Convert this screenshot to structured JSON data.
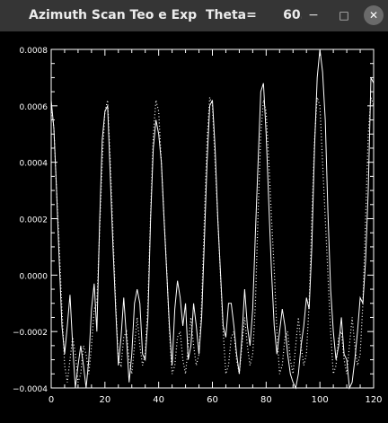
{
  "window": {
    "title": "Azimuth Scan Teo e Exp  Theta=      60.0000",
    "minimize_glyph": "−",
    "maximize_glyph": "□",
    "close_glyph": "✕"
  },
  "colors": {
    "background": "#000000",
    "titlebar": "#353535",
    "foreground": "#ffffff"
  },
  "chart_data": {
    "type": "line",
    "title": "",
    "xlabel": "",
    "ylabel": "",
    "xlim": [
      0,
      120
    ],
    "ylim": [
      -0.0004,
      0.0008
    ],
    "xticks": [
      0,
      20,
      40,
      60,
      80,
      100,
      120
    ],
    "xtick_labels": [
      "0",
      "20",
      "40",
      "60",
      "80",
      "100",
      "120"
    ],
    "yticks": [
      -0.0004,
      -0.0002,
      0.0,
      0.0002,
      0.0004,
      0.0006,
      0.0008
    ],
    "ytick_labels": [
      "−0.0004",
      "−0.0002",
      "0.0000",
      "0.0002",
      "0.0004",
      "0.0006",
      "0.0008"
    ],
    "grid": false,
    "legend": "none",
    "series": [
      {
        "style": "solid",
        "x": [
          0,
          1,
          2,
          3,
          4,
          5,
          6,
          7,
          8,
          9,
          10,
          11,
          12,
          13,
          14,
          15,
          16,
          17,
          18,
          19,
          20,
          21,
          22,
          23,
          24,
          25,
          26,
          27,
          28,
          29,
          30,
          31,
          32,
          33,
          34,
          35,
          36,
          37,
          38,
          39,
          40,
          41,
          42,
          43,
          44,
          45,
          46,
          47,
          48,
          49,
          50,
          51,
          52,
          53,
          54,
          55,
          56,
          57,
          58,
          59,
          60,
          61,
          62,
          63,
          64,
          65,
          66,
          67,
          68,
          69,
          70,
          71,
          72,
          73,
          74,
          75,
          76,
          77,
          78,
          79,
          80,
          81,
          82,
          83,
          84,
          85,
          86,
          87,
          88,
          89,
          90,
          91,
          92,
          93,
          94,
          95,
          96,
          97,
          98,
          99,
          100,
          101,
          102,
          103,
          104,
          105,
          106,
          107,
          108,
          109,
          110,
          111,
          112,
          113,
          114,
          115,
          116,
          117,
          118,
          119,
          120
        ],
        "y": [
          0.00062,
          0.00052,
          0.0003,
          5e-05,
          -0.00018,
          -0.00028,
          -0.00018,
          -7e-05,
          -0.00025,
          -0.0004,
          -0.00032,
          -0.00025,
          -0.00032,
          -0.0004,
          -0.0003,
          -0.00012,
          -3e-05,
          -0.0002,
          0.00018,
          0.00048,
          0.00058,
          0.0006,
          0.00035,
          0.0001,
          -0.00012,
          -0.00032,
          -0.00022,
          -8e-05,
          -0.00022,
          -0.00038,
          -0.00028,
          -0.0001,
          -5e-05,
          -0.0001,
          -0.00028,
          -0.0003,
          -0.00015,
          0.0002,
          0.00045,
          0.00055,
          0.0005,
          0.0004,
          0.0002,
          1e-05,
          -0.00018,
          -0.00032,
          -0.00012,
          -2e-05,
          -8e-05,
          -0.00018,
          -0.0001,
          -0.0003,
          -0.00025,
          -0.0001,
          -0.00018,
          -0.00028,
          -0.00015,
          0.00012,
          0.0004,
          0.0006,
          0.00062,
          0.00045,
          0.0002,
          1e-05,
          -0.00018,
          -0.00022,
          -0.0001,
          -0.0001,
          -0.00018,
          -0.00028,
          -0.00035,
          -0.00022,
          -5e-05,
          -0.00018,
          -0.00025,
          -0.00012,
          0.00015,
          0.0004,
          0.00065,
          0.00068,
          0.0005,
          0.00025,
          1e-05,
          -0.00018,
          -0.00028,
          -0.0002,
          -0.00012,
          -0.00018,
          -0.00028,
          -0.00035,
          -0.00038,
          -0.0004,
          -0.00035,
          -0.00025,
          -0.00018,
          -8e-05,
          -0.00012,
          0.0001,
          0.00045,
          0.0007,
          0.0008,
          0.00072,
          0.00055,
          0.00022,
          -5e-05,
          -0.0002,
          -0.0003,
          -0.00025,
          -0.00015,
          -0.00028,
          -0.0003,
          -0.0004,
          -0.00038,
          -0.0003,
          -0.0002,
          -8e-05,
          -0.0001,
          5e-05,
          0.0003,
          0.0007,
          0.00068
        ]
      },
      {
        "style": "dotted",
        "x": [
          0,
          1,
          2,
          3,
          4,
          5,
          6,
          7,
          8,
          9,
          10,
          11,
          12,
          13,
          14,
          15,
          16,
          17,
          18,
          19,
          20,
          21,
          22,
          23,
          24,
          25,
          26,
          27,
          28,
          29,
          30,
          31,
          32,
          33,
          34,
          35,
          36,
          37,
          38,
          39,
          40,
          41,
          42,
          43,
          44,
          45,
          46,
          47,
          48,
          49,
          50,
          51,
          52,
          53,
          54,
          55,
          56,
          57,
          58,
          59,
          60,
          61,
          62,
          63,
          64,
          65,
          66,
          67,
          68,
          69,
          70,
          71,
          72,
          73,
          74,
          75,
          76,
          77,
          78,
          79,
          80,
          81,
          82,
          83,
          84,
          85,
          86,
          87,
          88,
          89,
          90,
          91,
          92,
          93,
          94,
          95,
          96,
          97,
          98,
          99,
          100,
          101,
          102,
          103,
          104,
          105,
          106,
          107,
          108,
          109,
          110,
          111,
          112,
          113,
          114,
          115,
          116,
          117,
          118,
          119,
          120
        ],
        "y": [
          0.0006,
          0.00052,
          0.0003,
          0.0001,
          -0.00012,
          -0.00032,
          -0.00038,
          -0.0003,
          -0.00022,
          -0.00028,
          -0.00038,
          -0.00035,
          -0.00025,
          -0.00028,
          -0.00035,
          -0.00025,
          -0.00012,
          -0.0001,
          0.00015,
          0.0004,
          0.00058,
          0.00062,
          0.0004,
          0.00015,
          -0.0001,
          -0.0003,
          -0.00032,
          -0.00022,
          -0.0002,
          -0.0003,
          -0.00035,
          -0.00025,
          -0.00015,
          -0.00025,
          -0.00032,
          -0.00028,
          -0.0001,
          0.00022,
          0.0005,
          0.00062,
          0.00058,
          0.0004,
          0.0002,
          2e-05,
          -0.0002,
          -0.00035,
          -0.00032,
          -0.00022,
          -0.0002,
          -0.0003,
          -0.00035,
          -0.00025,
          -0.00015,
          -0.00025,
          -0.00032,
          -0.00028,
          -0.0001,
          0.0002,
          0.00048,
          0.00063,
          0.0006,
          0.0004,
          0.0002,
          0.0,
          -0.0002,
          -0.00035,
          -0.00032,
          -0.00022,
          -0.0002,
          -0.0003,
          -0.00035,
          -0.00025,
          -0.00015,
          -0.00025,
          -0.00032,
          -0.00028,
          -0.0001,
          0.00022,
          0.0005,
          0.00062,
          0.00058,
          0.0004,
          0.0002,
          2e-05,
          -0.0002,
          -0.00035,
          -0.00032,
          -0.00022,
          -0.0002,
          -0.0003,
          -0.00035,
          -0.00025,
          -0.00015,
          -0.00025,
          -0.00032,
          -0.00028,
          -0.0001,
          0.0002,
          0.00048,
          0.00063,
          0.0006,
          0.0004,
          0.0002,
          0.0,
          -0.0002,
          -0.00035,
          -0.00032,
          -0.00022,
          -0.0002,
          -0.0003,
          -0.00035,
          -0.00025,
          -0.00015,
          -0.00025,
          -0.00032,
          -0.00028,
          -0.0001,
          0.0002,
          0.0005,
          0.00063,
          0.0006
        ]
      }
    ]
  }
}
